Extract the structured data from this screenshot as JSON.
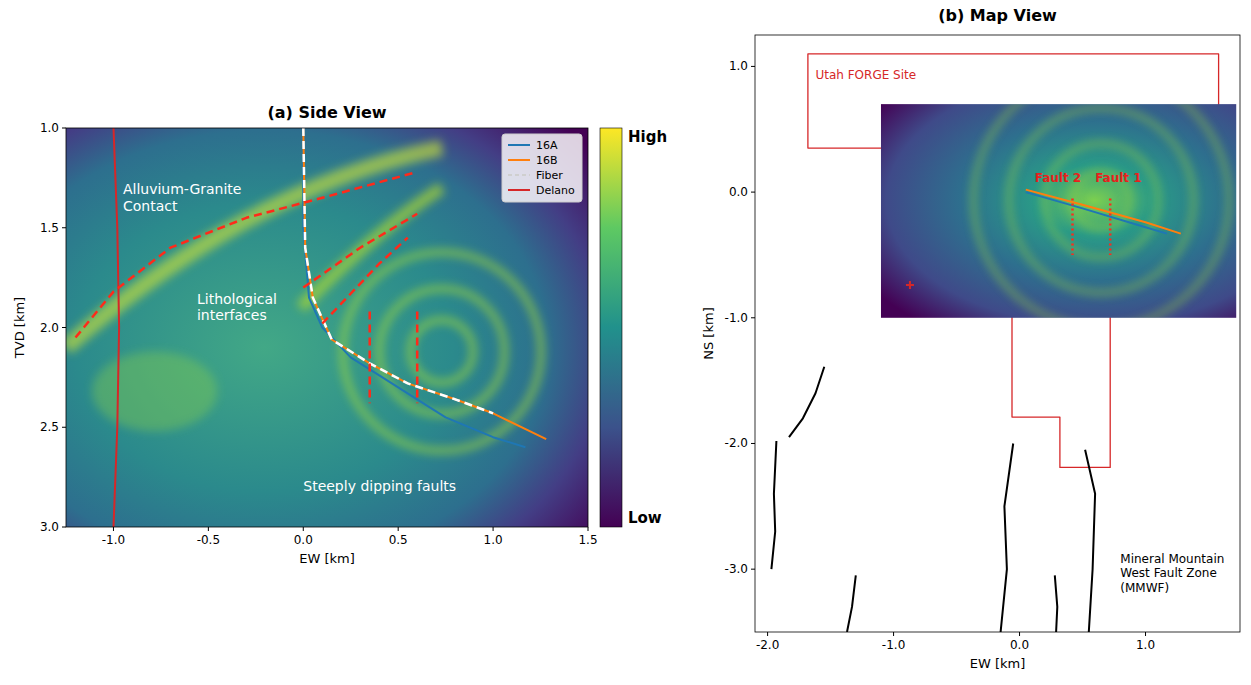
{
  "chart_data": [
    {
      "type": "line",
      "title": "(a) Side View",
      "x_label": "EW [km]",
      "y_label": "TVD [km]",
      "xlim": [
        -1.25,
        1.5
      ],
      "ylim": [
        3.0,
        1.0
      ],
      "xticks": [
        {
          "value": -1.0,
          "label": "-1.0"
        },
        -0.5,
        {
          "value": 0,
          "label": "0.0"
        },
        0.5,
        {
          "value": 1,
          "label": "1.0"
        },
        1.5
      ],
      "yticks": [
        {
          "value": 1,
          "label": "1.0"
        },
        1.5,
        {
          "value": 2,
          "label": "2.0"
        },
        2.5,
        {
          "value": 3,
          "label": "3.0"
        }
      ],
      "legend": "upper right",
      "colorbar_labels": [
        "High",
        "Low"
      ],
      "series": [
        {
          "name": "16A",
          "color": "#1f77b4",
          "line_style": "solid",
          "x": [
            0,
            0,
            0.03,
            0.1,
            0.25,
            0.5,
            0.75,
            1.0,
            1.17
          ],
          "y": [
            1.0,
            1.5,
            1.85,
            2.0,
            2.15,
            2.3,
            2.45,
            2.55,
            2.6
          ]
        },
        {
          "name": "16B",
          "color": "#ff7f0e",
          "line_style": "solid",
          "x": [
            0,
            0.01,
            0.05,
            0.15,
            0.35,
            0.55,
            0.8,
            1.0,
            1.28
          ],
          "y": [
            1.0,
            1.6,
            1.85,
            2.06,
            2.18,
            2.28,
            2.36,
            2.43,
            2.56
          ]
        },
        {
          "name": "Fiber",
          "color": "#ffffff",
          "line_style": "dashed",
          "x": [
            0,
            0.01,
            0.05,
            0.15,
            0.35,
            0.55,
            0.8,
            1.0
          ],
          "y": [
            1.0,
            1.6,
            1.85,
            2.06,
            2.18,
            2.28,
            2.36,
            2.43
          ]
        },
        {
          "name": "Delano",
          "color": "#d62728",
          "line_style": "solid",
          "x": [
            -1.0,
            -0.98,
            -0.97,
            -0.98,
            -1.0
          ],
          "y": [
            1.0,
            1.5,
            2.0,
            2.5,
            3.0
          ]
        },
        {
          "color": "#ff2a1a",
          "line_style": "dashed",
          "x": [
            -1.2,
            -1.0,
            -0.7,
            -0.3,
            0.1,
            0.6
          ],
          "y": [
            2.05,
            1.82,
            1.6,
            1.45,
            1.35,
            1.22
          ]
        },
        {
          "color": "#ff2a1a",
          "line_style": "dashed",
          "x": [
            0.0,
            0.3,
            0.6
          ],
          "y": [
            1.8,
            1.6,
            1.43
          ]
        },
        {
          "color": "#ff2a1a",
          "line_style": "dashed",
          "x": [
            0.1,
            0.4,
            0.55
          ],
          "y": [
            1.98,
            1.68,
            1.55
          ]
        },
        {
          "color": "#ff2a1a",
          "line_style": "dashed",
          "x": [
            0.35,
            0.35
          ],
          "y": [
            1.92,
            2.38
          ]
        },
        {
          "color": "#ff2a1a",
          "line_style": "dashed",
          "x": [
            0.6,
            0.6
          ],
          "y": [
            1.92,
            2.38
          ]
        }
      ],
      "annotations": [
        {
          "lines": [
            "Alluvium-Granite",
            "Contact"
          ],
          "x": -0.95,
          "y": 1.33,
          "color": "#ffffff"
        },
        {
          "lines": [
            "Lithological",
            "interfaces"
          ],
          "x": -0.56,
          "y": 1.88,
          "color": "#ffffff"
        },
        {
          "lines": [
            "Steeply dipping faults"
          ],
          "x": 0.0,
          "y": 2.82,
          "color": "#ffffff"
        }
      ]
    },
    {
      "type": "line",
      "title": "(b) Map View",
      "x_label": "EW [km]",
      "y_label": "NS [km]",
      "xlim": [
        -2.1,
        1.75
      ],
      "ylim": [
        -3.5,
        1.25
      ],
      "xticks": [
        {
          "value": -2,
          "label": "-2.0"
        },
        {
          "value": -1,
          "label": "-1.0"
        },
        {
          "value": 0,
          "label": "0.0"
        },
        {
          "value": 1,
          "label": "1.0"
        }
      ],
      "yticks": [
        {
          "value": 1,
          "label": "1.0"
        },
        {
          "value": 0,
          "label": "0.0"
        },
        {
          "value": -1,
          "label": "-1.0"
        },
        {
          "value": -2,
          "label": "-2.0"
        },
        {
          "value": -3,
          "label": "-3.0"
        }
      ],
      "inset_extent": {
        "x": [
          -1.1,
          1.72
        ],
        "y": [
          -1.0,
          0.7
        ]
      },
      "series": [
        {
          "type": "polygon",
          "color": "#d62728",
          "line_style": "solid",
          "x": [
            -1.68,
            1.58,
            1.58,
            0.72,
            0.72,
            0.32,
            0.32,
            -0.06,
            -0.06,
            -0.06,
            -1.68
          ],
          "y": [
            1.1,
            1.1,
            -0.52,
            -0.52,
            -2.19,
            -2.19,
            -1.79,
            -1.79,
            -1.0,
            0.35,
            0.35
          ]
        },
        {
          "color": "#1f77b4",
          "line_style": "solid",
          "x": [
            0.05,
            0.5,
            1.0,
            1.17
          ],
          "y": [
            0.0,
            -0.13,
            -0.28,
            -0.33
          ]
        },
        {
          "color": "#ff7f0e",
          "line_style": "solid",
          "x": [
            0.05,
            0.5,
            1.0,
            1.28
          ],
          "y": [
            0.02,
            -0.1,
            -0.24,
            -0.33
          ]
        },
        {
          "color": "#d62728",
          "line_style": "none",
          "marker": "plus",
          "x": [
            -0.87
          ],
          "y": [
            -0.74
          ]
        },
        {
          "color": "#ff2a1a",
          "line_style": "dotted",
          "x": [
            0.42,
            0.42
          ],
          "y": [
            -0.05,
            -0.5
          ]
        },
        {
          "color": "#ff2a1a",
          "line_style": "dotted",
          "x": [
            0.72,
            0.72
          ],
          "y": [
            -0.05,
            -0.5
          ]
        },
        {
          "color": "#000000",
          "line_style": "solid",
          "x": [
            -1.55,
            -1.62,
            -1.72,
            -1.83
          ],
          "y": [
            -1.39,
            -1.6,
            -1.8,
            -1.95
          ]
        },
        {
          "color": "#000000",
          "line_style": "solid",
          "x": [
            -1.93,
            -1.95,
            -1.94,
            -1.97
          ],
          "y": [
            -1.98,
            -2.4,
            -2.7,
            -3.0
          ]
        },
        {
          "color": "#000000",
          "line_style": "solid",
          "x": [
            -1.3,
            -1.33,
            -1.37
          ],
          "y": [
            -3.05,
            -3.3,
            -3.5
          ]
        },
        {
          "color": "#000000",
          "line_style": "solid",
          "x": [
            -0.05,
            -0.12,
            -0.1,
            -0.15
          ],
          "y": [
            -2.0,
            -2.5,
            -3.0,
            -3.5
          ]
        },
        {
          "color": "#000000",
          "line_style": "solid",
          "x": [
            0.28,
            0.3,
            0.29
          ],
          "y": [
            -3.05,
            -3.3,
            -3.5
          ]
        },
        {
          "color": "#000000",
          "line_style": "solid",
          "x": [
            0.52,
            0.6,
            0.58,
            0.55
          ],
          "y": [
            -2.05,
            -2.4,
            -3.0,
            -3.5
          ]
        }
      ],
      "annotations": [
        {
          "lines": [
            "Utah FORGE Site"
          ],
          "x": -1.62,
          "y": 0.9,
          "color": "#d62728"
        },
        {
          "lines": [
            "Fault 2"
          ],
          "x": 0.12,
          "y": 0.08,
          "color": "#e8201c"
        },
        {
          "lines": [
            "Fault 1"
          ],
          "x": 0.6,
          "y": 0.08,
          "color": "#e8201c"
        },
        {
          "lines": [
            "Mineral Mountain",
            "West Fault Zone",
            "(MMWF)"
          ],
          "x": 0.8,
          "y": -2.95,
          "color": "#000000"
        }
      ]
    }
  ]
}
